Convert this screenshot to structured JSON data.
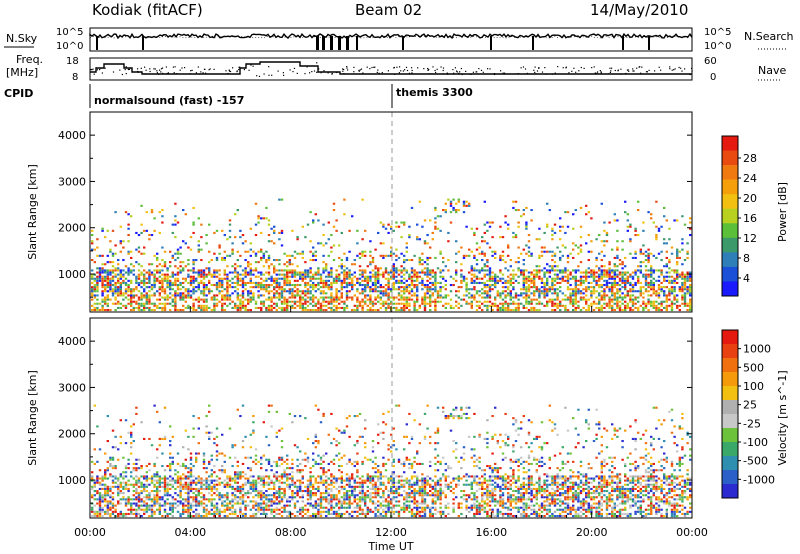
{
  "header": {
    "station": "Kodiak (fitACF)",
    "beam": "Beam 02",
    "date": "14/May/2010"
  },
  "side_labels": {
    "nsky": "N.Sky",
    "freq_line1": "Freq.",
    "freq_line2": "[MHz]",
    "cpid": "CPID",
    "nsearch": "N.Search",
    "nave": "Nave"
  },
  "strip_ticks": {
    "nsky_left": [
      "10^5",
      "10^0"
    ],
    "nsky_right": [
      "10^5",
      "10^0"
    ],
    "freq_left": [
      "18",
      "8"
    ],
    "freq_right": [
      "60",
      "0"
    ]
  },
  "cpid": {
    "left": "normalsound (fast) -157",
    "right": "themis 3300"
  },
  "chart_data": [
    {
      "type": "heatmap",
      "name": "power",
      "ylabel": "Slant Range [km]",
      "ylim": [
        180,
        4500
      ],
      "yticks": [
        "4000",
        "3000",
        "2000",
        "1000"
      ],
      "colorbar_label": "Power [dB]",
      "colorbar_ticks": [
        "28",
        "24",
        "20",
        "16",
        "12",
        "8",
        "4"
      ],
      "colorbar_colors": [
        "#1a1aff",
        "#1a4fd8",
        "#2e7fb8",
        "#3c9a6a",
        "#5cbf3a",
        "#b8d020",
        "#f2c010",
        "#f5a00a",
        "#f07a10",
        "#e84a10",
        "#e41a10"
      ]
    },
    {
      "type": "heatmap",
      "name": "velocity",
      "ylabel": "Slant Range [km]",
      "ylim": [
        180,
        4500
      ],
      "yticks": [
        "4000",
        "3000",
        "2000",
        "1000"
      ],
      "colorbar_label": "Velocity [m s^-1]",
      "colorbar_ticks": [
        "1000",
        "500",
        "100",
        "25",
        "-25",
        "-100",
        "-500",
        "-1000"
      ],
      "colorbar_colors": [
        "#2a2ad0",
        "#2a60c8",
        "#2e8fb0",
        "#3aa868",
        "#6cc23a",
        "#c8c8c8",
        "#b0b0b0",
        "#f2c010",
        "#f59a0a",
        "#f07010",
        "#e84010",
        "#e41a10"
      ]
    }
  ],
  "time_axis": {
    "label": "Time UT",
    "ticks": [
      "00:00",
      "04:00",
      "08:00",
      "12:00",
      "16:00",
      "20:00",
      "00:00"
    ]
  }
}
